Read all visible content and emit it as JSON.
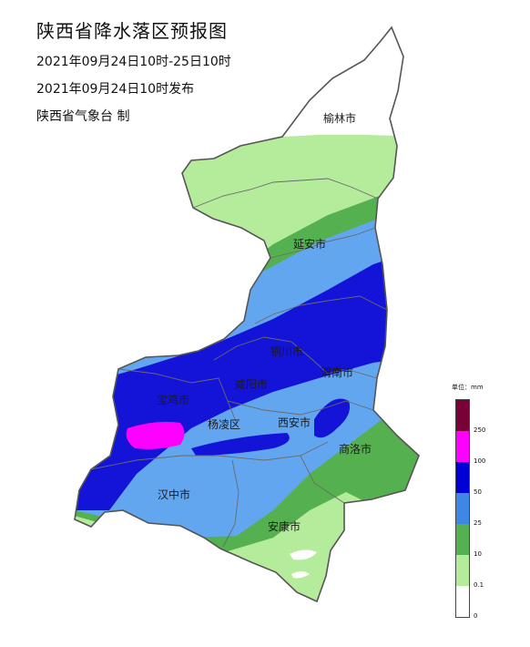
{
  "header": {
    "title": "陕西省降水落区预报图",
    "period": "2021年09月24日10时-25日10时",
    "issued": "2021年09月24日10时发布",
    "producer": "陕西省气象台 制"
  },
  "cities": [
    "榆林市",
    "延安市",
    "铜川市",
    "渭南市",
    "宝鸡市",
    "咸阳市",
    "杨凌区",
    "西安市",
    "商洛市",
    "汉中市",
    "安康市"
  ],
  "legend": {
    "title": "单位：mm",
    "ticks": [
      "250",
      "100",
      "50",
      "25",
      "10",
      "0.1",
      "0"
    ],
    "colors": [
      "#7a0038",
      "#ff00ff",
      "#0000d6",
      "#3f87e6",
      "#55b04f",
      "#b5ec9b",
      "#ffffff"
    ]
  },
  "colors": {
    "light_green": "#b5ec9b",
    "green": "#55b04f",
    "light_blue": "#63a6f0",
    "blue": "#1414d8",
    "magenta": "#ff00ff",
    "boundary": "#555555"
  }
}
